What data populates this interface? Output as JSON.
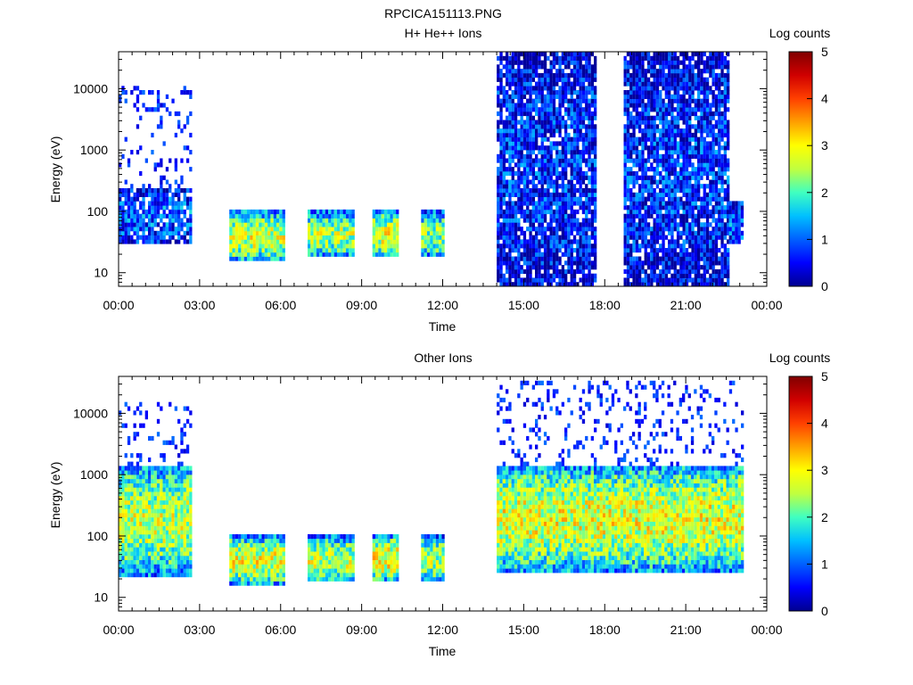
{
  "figure_title": "RPCICA151113.PNG",
  "colormap": {
    "stops": [
      "#000090",
      "#0000ff",
      "#0060ff",
      "#00c0ff",
      "#40ffc0",
      "#c0ff40",
      "#ffff00",
      "#ffa000",
      "#ff4000",
      "#d00000",
      "#800000"
    ]
  },
  "chart_data": [
    {
      "type": "heatmap",
      "title": "H+ He++ Ions",
      "xlabel": "Time",
      "ylabel": "Energy (eV)",
      "x_ticks": [
        "00:00",
        "03:00",
        "06:00",
        "09:00",
        "12:00",
        "15:00",
        "18:00",
        "21:00",
        "00:00"
      ],
      "x_range_hours": [
        0,
        24
      ],
      "y_scale": "log",
      "y_ticks": [
        "10",
        "100",
        "1000",
        "10000"
      ],
      "y_range_eV": [
        6,
        40000
      ],
      "colorbar": {
        "label": "Log counts",
        "range": [
          0,
          5
        ],
        "ticks": [
          "0",
          "1",
          "2",
          "3",
          "4",
          "5"
        ]
      },
      "blocks": [
        {
          "start_hour": 0.0,
          "end_hour": 2.7,
          "e_min": 28,
          "e_max": 250,
          "mean_log_counts": 1.0,
          "sparse_upper_to": 12000
        },
        {
          "start_hour": 4.1,
          "end_hour": 6.1,
          "e_min": 15,
          "e_max": 100,
          "mean_log_counts": 2.7
        },
        {
          "start_hour": 7.0,
          "end_hour": 8.7,
          "e_min": 18,
          "e_max": 100,
          "mean_log_counts": 2.5
        },
        {
          "start_hour": 9.4,
          "end_hour": 10.3,
          "e_min": 18,
          "e_max": 100,
          "mean_log_counts": 2.8
        },
        {
          "start_hour": 11.2,
          "end_hour": 12.0,
          "e_min": 17,
          "e_max": 100,
          "mean_log_counts": 2.3
        },
        {
          "start_hour": 14.0,
          "end_hour": 17.6,
          "e_min": 6,
          "e_max": 40000,
          "mean_log_counts": 0.7
        },
        {
          "start_hour": 18.7,
          "end_hour": 22.6,
          "e_min": 6,
          "e_max": 40000,
          "mean_log_counts": 0.7
        },
        {
          "start_hour": 22.6,
          "end_hour": 23.1,
          "e_min": 30,
          "e_max": 150,
          "mean_log_counts": 1.0
        }
      ]
    },
    {
      "type": "heatmap",
      "title": "Other Ions",
      "xlabel": "Time",
      "ylabel": "Energy (eV)",
      "x_ticks": [
        "00:00",
        "03:00",
        "06:00",
        "09:00",
        "12:00",
        "15:00",
        "18:00",
        "21:00",
        "00:00"
      ],
      "x_range_hours": [
        0,
        24
      ],
      "y_scale": "log",
      "y_ticks": [
        "10",
        "100",
        "1000",
        "10000"
      ],
      "y_range_eV": [
        6,
        40000
      ],
      "colorbar": {
        "label": "Log counts",
        "range": [
          0,
          5
        ],
        "ticks": [
          "0",
          "1",
          "2",
          "3",
          "4",
          "5"
        ]
      },
      "blocks": [
        {
          "start_hour": 0.0,
          "end_hour": 2.7,
          "e_min": 22,
          "e_max": 1500,
          "mean_log_counts": 2.6,
          "sparse_upper_to": 15000
        },
        {
          "start_hour": 4.1,
          "end_hour": 6.1,
          "e_min": 16,
          "e_max": 100,
          "mean_log_counts": 2.8
        },
        {
          "start_hour": 7.0,
          "end_hour": 8.7,
          "e_min": 17,
          "e_max": 100,
          "mean_log_counts": 2.6
        },
        {
          "start_hour": 9.4,
          "end_hour": 10.3,
          "e_min": 18,
          "e_max": 100,
          "mean_log_counts": 3.0
        },
        {
          "start_hour": 11.2,
          "end_hour": 12.0,
          "e_min": 17,
          "e_max": 100,
          "mean_log_counts": 2.5
        },
        {
          "start_hour": 14.0,
          "end_hour": 23.1,
          "e_min": 25,
          "e_max": 1500,
          "mean_log_counts": 2.8,
          "sparse_upper_to": 35000
        }
      ]
    }
  ]
}
